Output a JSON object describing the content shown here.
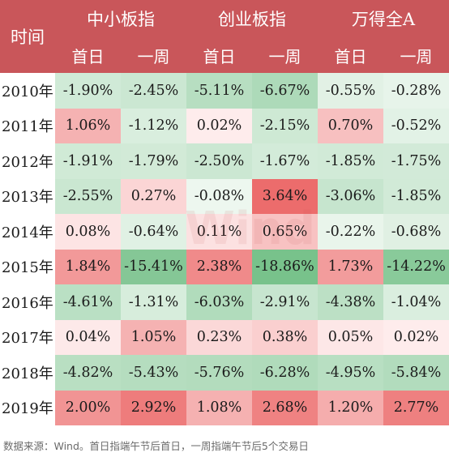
{
  "header": {
    "row_label": "时间",
    "groups": [
      "中小板指",
      "创业板指",
      "万得全A"
    ],
    "sub": [
      "首日",
      "一周"
    ]
  },
  "colors": {
    "header_bg": "#c9565a",
    "up_strong": "#ee6e6e",
    "down_strong": "#7cc58e"
  },
  "rows": [
    {
      "year": "2010年",
      "vals": [
        "-1.90%",
        "-2.45%",
        "-5.11%",
        "-6.67%",
        "-0.55%",
        "-0.28%"
      ]
    },
    {
      "year": "2011年",
      "vals": [
        "1.06%",
        "-1.12%",
        "0.02%",
        "-2.15%",
        "0.70%",
        "-0.52%"
      ]
    },
    {
      "year": "2012年",
      "vals": [
        "-1.91%",
        "-1.79%",
        "-2.50%",
        "-1.67%",
        "-1.85%",
        "-1.75%"
      ]
    },
    {
      "year": "2013年",
      "vals": [
        "-2.55%",
        "0.27%",
        "-0.08%",
        "3.64%",
        "-3.06%",
        "-1.85%"
      ]
    },
    {
      "year": "2014年",
      "vals": [
        "0.08%",
        "-0.64%",
        "0.11%",
        "0.65%",
        "-0.22%",
        "-0.68%"
      ]
    },
    {
      "year": "2015年",
      "vals": [
        "1.84%",
        "-15.41%",
        "2.38%",
        "-18.86%",
        "1.73%",
        "-14.22%"
      ]
    },
    {
      "year": "2016年",
      "vals": [
        "-4.61%",
        "-1.31%",
        "-6.03%",
        "-2.91%",
        "-4.38%",
        "-1.04%"
      ]
    },
    {
      "year": "2017年",
      "vals": [
        "0.04%",
        "1.05%",
        "0.23%",
        "0.38%",
        "0.05%",
        "0.02%"
      ]
    },
    {
      "year": "2018年",
      "vals": [
        "-4.82%",
        "-5.43%",
        "-5.76%",
        "-6.28%",
        "-4.95%",
        "-5.84%"
      ]
    },
    {
      "year": "2019年",
      "vals": [
        "2.00%",
        "2.92%",
        "1.08%",
        "2.68%",
        "1.20%",
        "2.77%"
      ]
    }
  ],
  "footnote": "数据来源：Wind。首日指端午节后首日，一周指端午节后5个交易日",
  "watermark": "Wind"
}
